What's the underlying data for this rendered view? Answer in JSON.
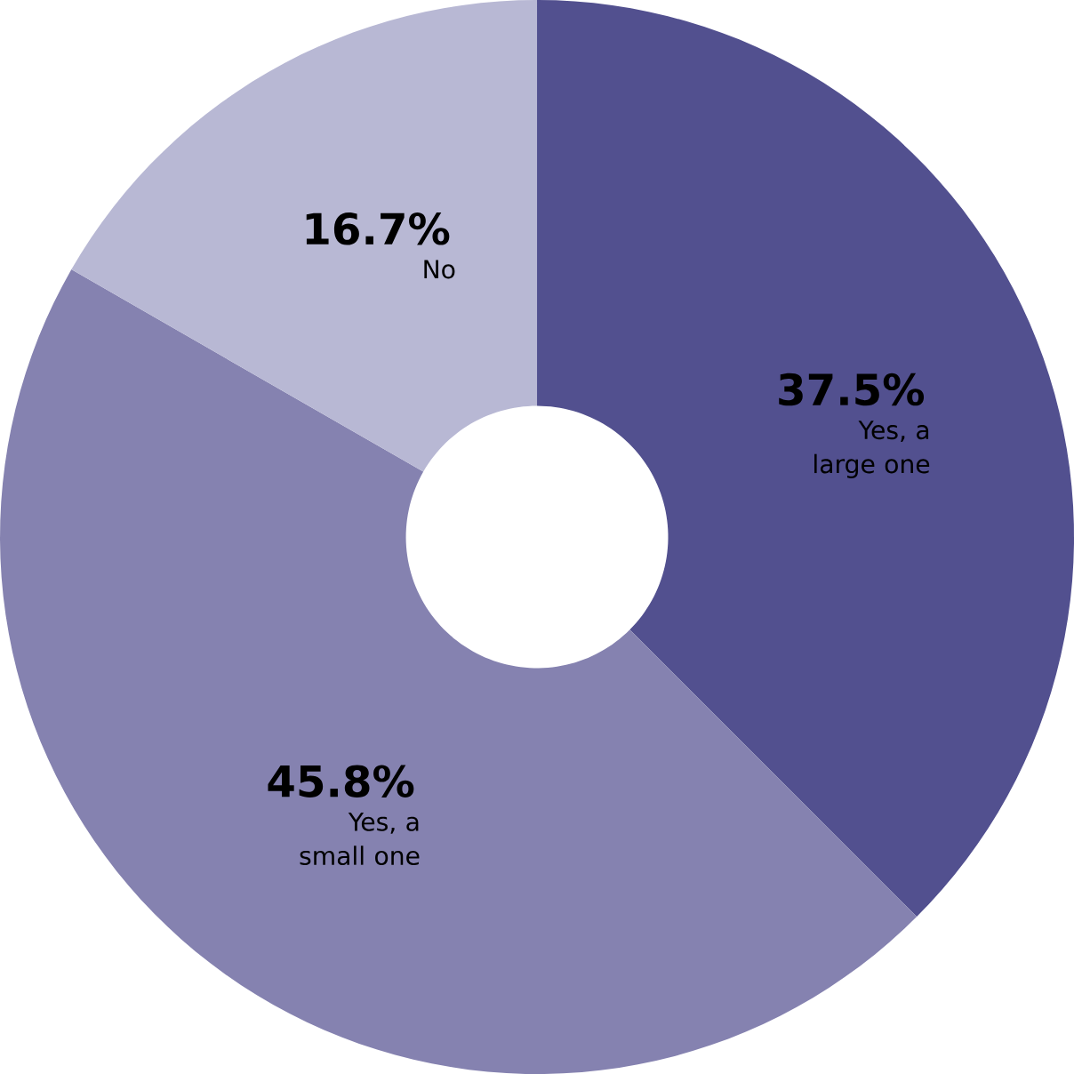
{
  "chart_data": {
    "type": "donut",
    "categories": [
      "Yes, a large one",
      "Yes, a small one",
      "No"
    ],
    "values": [
      37.5,
      45.8,
      16.7
    ],
    "colors": [
      "#52508f",
      "#8582b0",
      "#b8b8d4"
    ],
    "value_labels": [
      "37.5%",
      "45.8%",
      "16.7%"
    ]
  }
}
